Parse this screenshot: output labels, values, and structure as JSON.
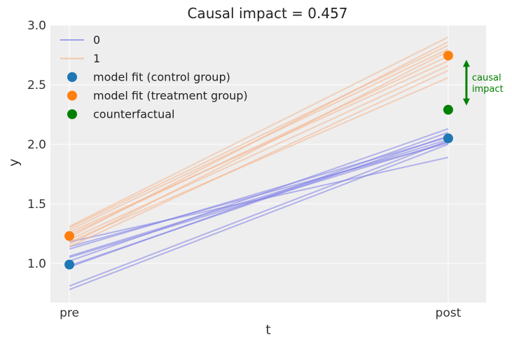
{
  "chart_data": {
    "type": "line",
    "title": "Causal impact = 0.457",
    "xlabel": "t",
    "ylabel": "y",
    "x_categories": [
      "pre",
      "post"
    ],
    "xlim": [
      -0.05,
      1.1
    ],
    "ylim": [
      0.67,
      3.0
    ],
    "yticks": [
      "1.0",
      "1.5",
      "2.0",
      "2.5",
      "3.0"
    ],
    "grid": true,
    "legend_position": "top-left",
    "colors": {
      "background": "#eeeeee",
      "grid": "#ffffff",
      "control_lines": "#7f7fe8",
      "treatment_lines": "#f5b58a",
      "control_point": "#1f77b4",
      "treatment_point": "#ff7f0e",
      "counterfactual_point": "#008000",
      "annotation": "#008000"
    },
    "series": [
      {
        "name": "0",
        "role": "control",
        "lines": [
          [
            0.98,
            2.07
          ],
          [
            1.06,
            2.04
          ],
          [
            1.14,
            2.01
          ],
          [
            1.18,
            1.89
          ],
          [
            1.02,
            2.13
          ],
          [
            0.97,
            2.1
          ],
          [
            0.81,
            2.03
          ],
          [
            0.78,
            2.0
          ],
          [
            1.12,
            2.06
          ],
          [
            1.05,
            2.02
          ]
        ]
      },
      {
        "name": "1",
        "role": "treatment",
        "lines": [
          [
            1.3,
            2.83
          ],
          [
            1.31,
            2.9
          ],
          [
            1.28,
            2.8
          ],
          [
            1.24,
            2.74
          ],
          [
            1.2,
            2.66
          ],
          [
            1.18,
            2.56
          ],
          [
            1.16,
            2.78
          ],
          [
            1.14,
            2.62
          ],
          [
            1.26,
            2.7
          ],
          [
            1.22,
            2.86
          ]
        ]
      }
    ],
    "points": [
      {
        "name": "model fit (control group)",
        "points": [
          [
            0,
            0.99
          ],
          [
            1,
            2.05
          ]
        ]
      },
      {
        "name": "model fit (treatment group)",
        "points": [
          [
            0,
            1.23
          ],
          [
            1,
            2.745
          ]
        ]
      },
      {
        "name": "counterfactual",
        "points": [
          [
            1,
            2.29
          ]
        ]
      }
    ],
    "annotation": {
      "text_line1": "causal",
      "text_line2": "impact",
      "from_y": 2.29,
      "to_y": 2.745
    }
  }
}
